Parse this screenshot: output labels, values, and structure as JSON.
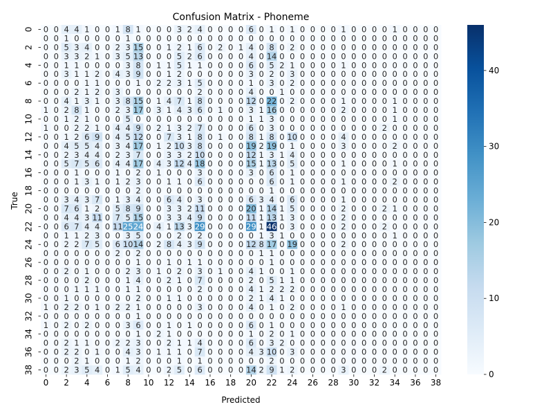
{
  "chart_data": {
    "type": "heatmap",
    "title": "Confusion Matrix - Phoneme",
    "xlabel": "Predicted",
    "ylabel": "True",
    "x_tick_labels": [
      "0",
      "2",
      "4",
      "6",
      "8",
      "10",
      "12",
      "14",
      "16",
      "18",
      "20",
      "22",
      "24",
      "26",
      "28",
      "30",
      "32",
      "34",
      "36",
      "38"
    ],
    "y_tick_labels": [
      "0",
      "2",
      "4",
      "6",
      "8",
      "10",
      "12",
      "14",
      "16",
      "18",
      "20",
      "22",
      "24",
      "26",
      "28",
      "30",
      "32",
      "34",
      "36",
      "38"
    ],
    "colorbar_ticks": [
      "0",
      "10",
      "20",
      "30",
      "40"
    ],
    "vmin": 0,
    "vmax": 46,
    "colormap": "Blues",
    "color_low": "#f7fbff",
    "color_high": "#08306b",
    "classes": 39,
    "matrix": [
      [
        0,
        0,
        4,
        4,
        1,
        0,
        0,
        1,
        8,
        1,
        0,
        0,
        0,
        3,
        2,
        4,
        0,
        0,
        0,
        0,
        6,
        0,
        1,
        0,
        1,
        0,
        0,
        0,
        0,
        1,
        0,
        0,
        0,
        0,
        1,
        0,
        0,
        0,
        0
      ],
      [
        0,
        0,
        1,
        0,
        0,
        0,
        0,
        0,
        1,
        0,
        0,
        0,
        0,
        0,
        0,
        0,
        0,
        0,
        0,
        0,
        0,
        0,
        0,
        0,
        0,
        0,
        0,
        0,
        0,
        0,
        0,
        0,
        0,
        0,
        0,
        0,
        0,
        0,
        0
      ],
      [
        0,
        0,
        5,
        3,
        4,
        0,
        0,
        2,
        3,
        15,
        0,
        0,
        1,
        2,
        1,
        6,
        0,
        2,
        0,
        1,
        4,
        0,
        8,
        0,
        2,
        0,
        0,
        0,
        0,
        0,
        0,
        0,
        0,
        0,
        0,
        0,
        0,
        0,
        0
      ],
      [
        0,
        0,
        3,
        3,
        2,
        1,
        0,
        3,
        5,
        13,
        0,
        0,
        0,
        5,
        2,
        6,
        0,
        0,
        0,
        0,
        4,
        0,
        14,
        0,
        0,
        0,
        0,
        0,
        0,
        0,
        0,
        0,
        0,
        0,
        0,
        0,
        0,
        0,
        0
      ],
      [
        0,
        0,
        1,
        1,
        0,
        0,
        0,
        0,
        3,
        8,
        0,
        1,
        1,
        5,
        1,
        1,
        0,
        0,
        0,
        0,
        6,
        0,
        5,
        2,
        1,
        0,
        0,
        0,
        0,
        1,
        0,
        0,
        0,
        0,
        0,
        0,
        0,
        0,
        0
      ],
      [
        0,
        0,
        3,
        1,
        1,
        2,
        0,
        4,
        3,
        9,
        0,
        0,
        1,
        2,
        0,
        0,
        0,
        0,
        0,
        0,
        3,
        0,
        2,
        0,
        3,
        0,
        0,
        0,
        0,
        0,
        0,
        0,
        0,
        0,
        0,
        0,
        0,
        0,
        0
      ],
      [
        0,
        0,
        0,
        0,
        1,
        1,
        0,
        0,
        0,
        1,
        0,
        2,
        2,
        3,
        1,
        5,
        0,
        0,
        0,
        0,
        1,
        0,
        3,
        0,
        2,
        0,
        0,
        0,
        0,
        0,
        0,
        0,
        0,
        0,
        0,
        0,
        0,
        0,
        0
      ],
      [
        0,
        0,
        0,
        2,
        1,
        2,
        0,
        3,
        0,
        0,
        0,
        0,
        0,
        0,
        0,
        2,
        0,
        0,
        0,
        0,
        4,
        0,
        0,
        1,
        0,
        0,
        0,
        0,
        0,
        0,
        0,
        0,
        0,
        0,
        0,
        0,
        0,
        0,
        0
      ],
      [
        0,
        0,
        4,
        1,
        3,
        1,
        0,
        3,
        8,
        15,
        0,
        1,
        4,
        7,
        1,
        8,
        0,
        0,
        0,
        0,
        12,
        0,
        22,
        0,
        2,
        0,
        0,
        0,
        0,
        1,
        0,
        0,
        0,
        0,
        1,
        0,
        0,
        0,
        0
      ],
      [
        1,
        0,
        2,
        8,
        1,
        0,
        0,
        2,
        3,
        17,
        0,
        3,
        1,
        4,
        3,
        6,
        0,
        1,
        0,
        0,
        3,
        1,
        16,
        0,
        0,
        0,
        0,
        0,
        0,
        2,
        0,
        0,
        0,
        0,
        1,
        0,
        0,
        0,
        0
      ],
      [
        0,
        0,
        1,
        2,
        1,
        0,
        0,
        0,
        5,
        0,
        0,
        0,
        0,
        0,
        0,
        0,
        0,
        0,
        0,
        0,
        1,
        1,
        3,
        0,
        0,
        0,
        0,
        0,
        0,
        0,
        0,
        0,
        0,
        0,
        1,
        0,
        0,
        0,
        0
      ],
      [
        1,
        0,
        0,
        2,
        2,
        1,
        0,
        4,
        4,
        9,
        0,
        2,
        1,
        3,
        2,
        7,
        0,
        0,
        0,
        0,
        6,
        0,
        3,
        0,
        0,
        0,
        0,
        0,
        0,
        0,
        0,
        0,
        0,
        2,
        0,
        0,
        0,
        0,
        0
      ],
      [
        0,
        0,
        1,
        2,
        6,
        9,
        0,
        4,
        5,
        12,
        0,
        0,
        7,
        3,
        1,
        8,
        0,
        1,
        0,
        0,
        8,
        1,
        8,
        0,
        10,
        0,
        0,
        0,
        0,
        4,
        0,
        0,
        0,
        0,
        0,
        0,
        0,
        0,
        0
      ],
      [
        0,
        0,
        4,
        5,
        5,
        4,
        0,
        3,
        4,
        17,
        0,
        1,
        2,
        10,
        3,
        8,
        0,
        0,
        0,
        0,
        19,
        2,
        19,
        0,
        1,
        0,
        0,
        0,
        0,
        3,
        0,
        0,
        0,
        0,
        2,
        0,
        0,
        0,
        0
      ],
      [
        0,
        0,
        2,
        3,
        4,
        4,
        0,
        2,
        3,
        7,
        0,
        0,
        3,
        3,
        2,
        10,
        0,
        0,
        0,
        0,
        12,
        1,
        3,
        1,
        4,
        0,
        0,
        0,
        0,
        0,
        0,
        0,
        0,
        0,
        0,
        0,
        0,
        0,
        0
      ],
      [
        0,
        0,
        5,
        7,
        5,
        6,
        0,
        4,
        4,
        17,
        0,
        4,
        3,
        12,
        4,
        18,
        0,
        0,
        0,
        0,
        15,
        1,
        13,
        0,
        5,
        0,
        0,
        0,
        0,
        1,
        0,
        0,
        0,
        0,
        1,
        0,
        0,
        0,
        0
      ],
      [
        0,
        0,
        0,
        1,
        0,
        0,
        0,
        1,
        0,
        2,
        0,
        1,
        0,
        0,
        0,
        3,
        0,
        0,
        0,
        0,
        3,
        0,
        6,
        0,
        1,
        0,
        0,
        0,
        0,
        0,
        0,
        0,
        0,
        0,
        0,
        0,
        0,
        0,
        0
      ],
      [
        0,
        0,
        0,
        1,
        3,
        1,
        0,
        1,
        2,
        3,
        0,
        0,
        1,
        1,
        0,
        6,
        0,
        0,
        0,
        0,
        0,
        0,
        6,
        0,
        1,
        0,
        0,
        0,
        0,
        1,
        0,
        0,
        0,
        0,
        2,
        0,
        0,
        0,
        0
      ],
      [
        0,
        0,
        0,
        0,
        0,
        0,
        0,
        0,
        0,
        2,
        0,
        0,
        0,
        0,
        0,
        0,
        0,
        0,
        0,
        0,
        0,
        0,
        1,
        0,
        0,
        0,
        0,
        0,
        0,
        0,
        0,
        0,
        0,
        0,
        0,
        0,
        0,
        0,
        0
      ],
      [
        0,
        0,
        3,
        4,
        3,
        7,
        0,
        1,
        3,
        4,
        0,
        0,
        6,
        4,
        0,
        3,
        0,
        0,
        0,
        0,
        6,
        3,
        4,
        0,
        6,
        0,
        0,
        0,
        0,
        1,
        0,
        0,
        0,
        0,
        0,
        0,
        0,
        0,
        0
      ],
      [
        0,
        0,
        7,
        6,
        1,
        2,
        0,
        5,
        8,
        9,
        0,
        0,
        3,
        3,
        2,
        11,
        0,
        0,
        0,
        0,
        20,
        1,
        14,
        1,
        5,
        0,
        0,
        0,
        0,
        2,
        0,
        0,
        0,
        2,
        1,
        0,
        0,
        0,
        0
      ],
      [
        0,
        0,
        4,
        4,
        3,
        11,
        0,
        7,
        5,
        15,
        0,
        0,
        3,
        3,
        4,
        9,
        0,
        0,
        0,
        0,
        11,
        1,
        13,
        1,
        3,
        0,
        0,
        0,
        0,
        2,
        0,
        0,
        0,
        0,
        0,
        0,
        0,
        0,
        0
      ],
      [
        0,
        0,
        6,
        7,
        4,
        4,
        0,
        11,
        25,
        24,
        0,
        4,
        1,
        13,
        3,
        29,
        0,
        0,
        0,
        0,
        29,
        1,
        46,
        0,
        3,
        0,
        0,
        0,
        0,
        2,
        0,
        0,
        0,
        2,
        0,
        0,
        0,
        0,
        0
      ],
      [
        0,
        0,
        1,
        1,
        2,
        3,
        0,
        0,
        3,
        5,
        0,
        0,
        0,
        2,
        0,
        2,
        0,
        0,
        0,
        0,
        0,
        1,
        3,
        1,
        0,
        0,
        0,
        0,
        0,
        0,
        0,
        0,
        0,
        0,
        1,
        0,
        0,
        0,
        0
      ],
      [
        0,
        0,
        2,
        2,
        7,
        5,
        0,
        6,
        10,
        14,
        0,
        2,
        8,
        4,
        3,
        9,
        0,
        0,
        0,
        0,
        12,
        8,
        17,
        0,
        19,
        0,
        0,
        0,
        0,
        2,
        0,
        0,
        0,
        0,
        0,
        0,
        0,
        0,
        0
      ],
      [
        0,
        0,
        0,
        0,
        0,
        0,
        0,
        2,
        0,
        2,
        0,
        0,
        0,
        0,
        0,
        0,
        0,
        0,
        0,
        0,
        0,
        1,
        1,
        0,
        0,
        0,
        0,
        0,
        0,
        0,
        0,
        0,
        0,
        0,
        0,
        0,
        0,
        0,
        0
      ],
      [
        0,
        0,
        0,
        0,
        0,
        0,
        0,
        0,
        0,
        1,
        0,
        0,
        1,
        0,
        1,
        1,
        0,
        0,
        0,
        0,
        0,
        0,
        1,
        0,
        0,
        0,
        0,
        0,
        0,
        0,
        0,
        0,
        0,
        0,
        0,
        0,
        0,
        0,
        0
      ],
      [
        0,
        0,
        2,
        0,
        1,
        0,
        0,
        0,
        2,
        3,
        0,
        1,
        0,
        2,
        0,
        3,
        0,
        1,
        0,
        0,
        4,
        1,
        0,
        0,
        1,
        0,
        0,
        0,
        0,
        0,
        0,
        0,
        0,
        0,
        0,
        0,
        0,
        0,
        0
      ],
      [
        0,
        0,
        0,
        0,
        2,
        0,
        0,
        0,
        1,
        4,
        0,
        0,
        2,
        1,
        0,
        7,
        0,
        0,
        0,
        0,
        2,
        0,
        5,
        1,
        1,
        0,
        0,
        0,
        0,
        0,
        0,
        0,
        0,
        0,
        0,
        0,
        0,
        0,
        0
      ],
      [
        0,
        0,
        0,
        1,
        1,
        1,
        0,
        0,
        1,
        1,
        0,
        0,
        0,
        0,
        0,
        2,
        0,
        0,
        0,
        0,
        4,
        1,
        2,
        2,
        2,
        0,
        0,
        0,
        0,
        0,
        0,
        0,
        0,
        0,
        0,
        0,
        0,
        0,
        0
      ],
      [
        0,
        0,
        1,
        0,
        0,
        0,
        0,
        0,
        0,
        2,
        0,
        0,
        1,
        1,
        0,
        0,
        0,
        0,
        0,
        0,
        2,
        1,
        4,
        1,
        0,
        0,
        0,
        0,
        0,
        0,
        0,
        0,
        0,
        0,
        0,
        0,
        0,
        0,
        0
      ],
      [
        1,
        0,
        2,
        2,
        0,
        1,
        0,
        2,
        2,
        1,
        0,
        0,
        0,
        0,
        0,
        3,
        0,
        0,
        0,
        0,
        4,
        0,
        1,
        0,
        2,
        0,
        0,
        0,
        0,
        1,
        0,
        0,
        0,
        0,
        0,
        0,
        0,
        0,
        0
      ],
      [
        0,
        0,
        0,
        0,
        0,
        0,
        0,
        0,
        0,
        1,
        0,
        0,
        0,
        0,
        0,
        0,
        0,
        0,
        0,
        0,
        0,
        0,
        0,
        0,
        0,
        0,
        0,
        0,
        0,
        0,
        0,
        0,
        0,
        0,
        0,
        0,
        0,
        0,
        0
      ],
      [
        1,
        0,
        2,
        0,
        2,
        0,
        0,
        0,
        3,
        6,
        0,
        0,
        1,
        0,
        1,
        0,
        0,
        0,
        0,
        0,
        6,
        0,
        1,
        0,
        0,
        0,
        0,
        0,
        0,
        0,
        0,
        0,
        0,
        0,
        0,
        0,
        0,
        0,
        0
      ],
      [
        0,
        0,
        0,
        0,
        0,
        0,
        0,
        0,
        0,
        1,
        0,
        2,
        1,
        0,
        0,
        0,
        0,
        0,
        0,
        0,
        1,
        0,
        2,
        0,
        1,
        0,
        0,
        0,
        0,
        0,
        0,
        0,
        0,
        0,
        0,
        0,
        0,
        0,
        0
      ],
      [
        0,
        0,
        2,
        1,
        1,
        0,
        0,
        2,
        2,
        3,
        0,
        0,
        2,
        1,
        1,
        4,
        0,
        0,
        0,
        0,
        6,
        0,
        3,
        2,
        0,
        0,
        0,
        0,
        0,
        0,
        0,
        0,
        0,
        0,
        0,
        0,
        0,
        0,
        0
      ],
      [
        0,
        0,
        2,
        2,
        0,
        1,
        0,
        0,
        4,
        3,
        0,
        1,
        1,
        1,
        0,
        7,
        0,
        0,
        0,
        0,
        4,
        3,
        10,
        0,
        3,
        0,
        0,
        0,
        0,
        0,
        0,
        0,
        0,
        0,
        0,
        0,
        0,
        0,
        0
      ],
      [
        0,
        0,
        0,
        2,
        1,
        0,
        0,
        0,
        1,
        2,
        0,
        0,
        0,
        1,
        0,
        1,
        0,
        0,
        0,
        0,
        0,
        0,
        2,
        0,
        0,
        0,
        0,
        0,
        0,
        0,
        0,
        0,
        0,
        0,
        0,
        0,
        0,
        0,
        0
      ],
      [
        0,
        0,
        2,
        3,
        5,
        4,
        0,
        1,
        5,
        4,
        0,
        0,
        2,
        5,
        0,
        6,
        0,
        0,
        0,
        0,
        14,
        2,
        9,
        1,
        2,
        0,
        0,
        0,
        0,
        3,
        0,
        0,
        0,
        2,
        0,
        0,
        0,
        0,
        0
      ]
    ]
  }
}
